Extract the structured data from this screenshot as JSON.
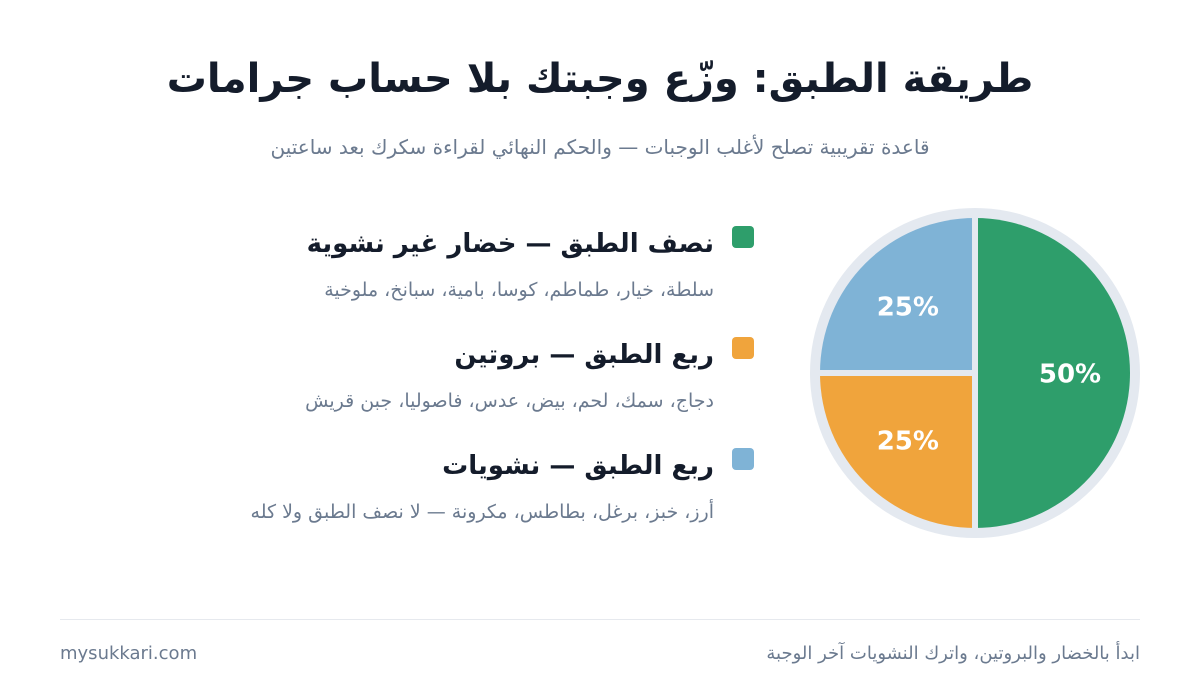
{
  "header": {
    "title": "طريقة الطبق: وزّع وجبتك بلا حساب جرامات",
    "subtitle": "قاعدة تقريبية تصلح لأغلب الوجبات — والحكم النهائي لقراءة سكرك بعد ساعتين"
  },
  "chart_data": {
    "type": "pie",
    "slices": [
      {
        "label": "نصف الطبق — خضار غير نشوية",
        "value": 50,
        "display": "50%",
        "color": "#2e9e6b",
        "examples": "سلطة، خيار، طماطم، كوسا، بامية، سبانخ، ملوخية"
      },
      {
        "label": "ربع الطبق — بروتين",
        "value": 25,
        "display": "25%",
        "color": "#f0a43c",
        "examples": "دجاج، سمك، لحم، بيض، عدس، فاصوليا، جبن قريش"
      },
      {
        "label": "ربع الطبق — نشويات",
        "value": 25,
        "display": "25%",
        "color": "#7fb3d6",
        "examples": "أرز، خبز، برغل، بطاطس، مكرونة — لا نصف الطبق ولا كله"
      }
    ],
    "plate_rim_color": "#e4e9f0"
  },
  "footer": {
    "tip": "ابدأ بالخضار والبروتين، واترك النشويات آخر الوجبة",
    "site": "mysukkari.com"
  }
}
